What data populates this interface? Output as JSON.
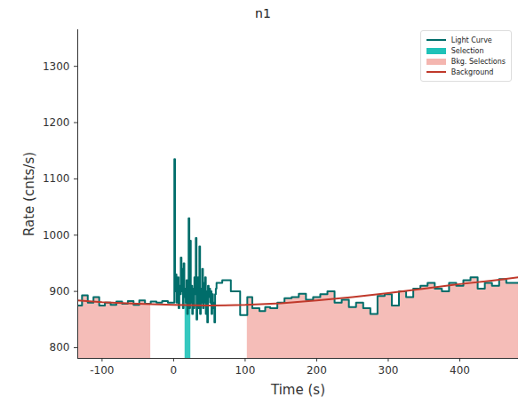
{
  "chart_data": {
    "type": "line",
    "title": "n1",
    "x_label": "Time (s)",
    "y_label": "Rate (cnts/s)",
    "xlim": [
      -134,
      482
    ],
    "ylim": [
      781,
      1365
    ],
    "xticks": [
      -100,
      0,
      100,
      200,
      300,
      400
    ],
    "yticks": [
      800,
      900,
      1000,
      1100,
      1200,
      1300
    ],
    "legend": "upper right",
    "series": [
      {
        "name": "Light Curve",
        "color": "#006d6a",
        "line_style": "step",
        "x": [
          -134,
          -128,
          -120,
          -112,
          -104,
          -96,
          -88,
          -80,
          -72,
          -64,
          -56,
          -48,
          -40,
          -32,
          -24,
          -16,
          -8,
          0,
          1,
          2,
          3,
          4,
          5,
          6,
          7,
          8,
          9,
          10,
          11,
          12,
          13,
          14,
          15,
          16,
          17,
          18,
          19,
          20,
          21,
          22,
          23,
          24,
          25,
          26,
          27,
          28,
          29,
          30,
          31,
          32,
          33,
          34,
          35,
          36,
          37,
          38,
          39,
          40,
          41,
          42,
          43,
          44,
          45,
          46,
          47,
          48,
          49,
          50,
          51,
          52,
          53,
          54,
          55,
          56,
          57,
          58,
          59,
          60,
          68,
          80,
          93,
          103,
          110,
          120,
          128,
          135,
          145,
          155,
          165,
          175,
          185,
          195,
          205,
          215,
          225,
          235,
          245,
          255,
          265,
          275,
          285,
          295,
          305,
          315,
          325,
          335,
          345,
          355,
          365,
          375,
          385,
          395,
          405,
          415,
          425,
          435,
          445,
          455,
          465,
          475,
          482
        ],
        "values": [
          875,
          893,
          880,
          890,
          875,
          880,
          876,
          882,
          878,
          883,
          876,
          884,
          878,
          882,
          880,
          883,
          880,
          880,
          1135,
          900,
          930,
          880,
          900,
          925,
          870,
          910,
          895,
          960,
          900,
          940,
          870,
          950,
          890,
          905,
          880,
          920,
          860,
          890,
          1030,
          870,
          990,
          880,
          910,
          860,
          905,
          870,
          925,
          895,
          995,
          850,
          880,
          925,
          870,
          980,
          860,
          905,
          880,
          940,
          870,
          915,
          880,
          925,
          860,
          900,
          845,
          910,
          890,
          905,
          880,
          900,
          860,
          895,
          870,
          880,
          845,
          895,
          905,
          915,
          920,
          900,
          858,
          890,
          870,
          865,
          872,
          870,
          880,
          888,
          890,
          896,
          885,
          890,
          895,
          900,
          880,
          885,
          872,
          880,
          870,
          860,
          892,
          895,
          875,
          900,
          890,
          905,
          910,
          915,
          905,
          900,
          915,
          910,
          920,
          925,
          905,
          915,
          910,
          922,
          915,
          915,
          915
        ]
      },
      {
        "name": "Background",
        "color": "#c0392b",
        "line_style": "solid",
        "x": [
          -134,
          -100,
          -50,
          0,
          50,
          100,
          150,
          200,
          250,
          300,
          350,
          400,
          450,
          482
        ],
        "values": [
          884,
          881,
          878,
          876,
          875,
          876,
          879,
          884,
          890,
          897,
          905,
          913,
          920,
          925
        ]
      }
    ],
    "selections": [
      {
        "name": "Selection",
        "color": "#1fc2b8",
        "ranges": [
          [
            16,
            24
          ]
        ]
      },
      {
        "name": "Bkg. Selections",
        "color": "#f4b6b0",
        "ranges": [
          [
            -134,
            -30
          ],
          [
            95,
            482
          ]
        ]
      }
    ]
  }
}
